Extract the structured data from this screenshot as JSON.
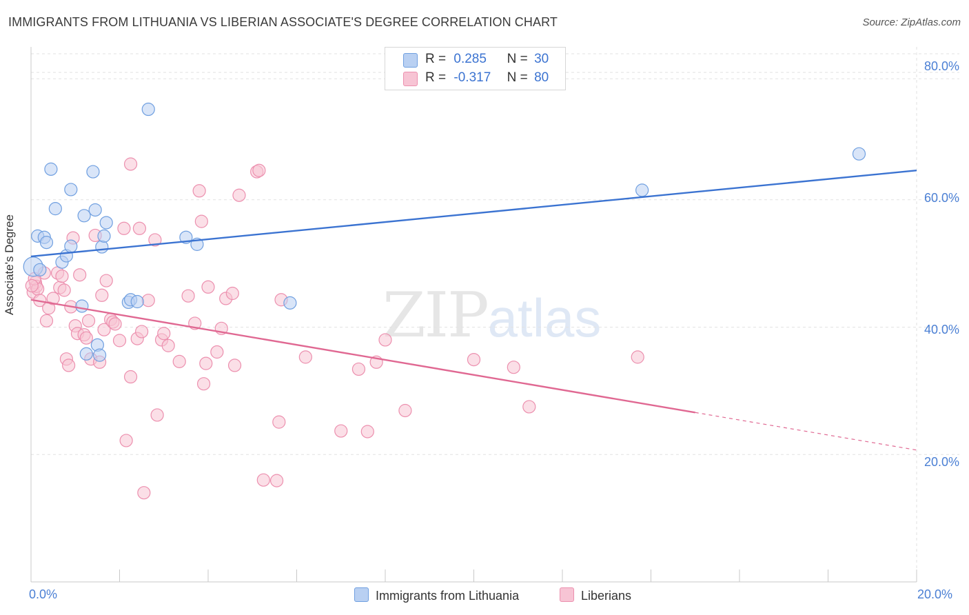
{
  "header": {
    "title": "IMMIGRANTS FROM LITHUANIA VS LIBERIAN ASSOCIATE'S DEGREE CORRELATION CHART",
    "source": "Source: ZipAtlas.com"
  },
  "watermark": {
    "zip": "ZIP",
    "atlas": "atlas"
  },
  "legend": {
    "blue": {
      "r_label": "R =",
      "r_value": "0.285",
      "n_label": "N =",
      "n_value": "30"
    },
    "pink": {
      "r_label": "R =",
      "r_value": "-0.317",
      "n_label": "N =",
      "n_value": "80"
    }
  },
  "colors": {
    "blue_fill": "#b9d0f2",
    "blue_stroke": "#6f9fe0",
    "blue_line": "#3b73d1",
    "pink_fill": "#f7c4d4",
    "pink_stroke": "#ec8fae",
    "pink_line": "#e06892",
    "tick_label": "#4a7fd4",
    "grid": "#e2e2e2"
  },
  "chart_data": {
    "type": "scatter",
    "title": "IMMIGRANTS FROM LITHUANIA VS LIBERIAN ASSOCIATE'S DEGREE CORRELATION CHART",
    "xlabel": "",
    "ylabel": "Associate's Degree",
    "xlim": [
      0,
      20
    ],
    "ylim": [
      0,
      84
    ],
    "x_ticks": [
      "0.0%",
      "20.0%"
    ],
    "y_ticks": [
      "20.0%",
      "40.0%",
      "60.0%",
      "80.0%"
    ],
    "y_tick_values": [
      20,
      40,
      60,
      80
    ],
    "grid": true,
    "legend_position": "top-center",
    "series": [
      {
        "name": "Immigrants from Lithuania",
        "color": "blue",
        "points": [
          [
            0.05,
            49.5
          ],
          [
            0.15,
            54.3
          ],
          [
            0.3,
            54.1
          ],
          [
            0.35,
            53.3
          ],
          [
            0.45,
            64.8
          ],
          [
            0.55,
            58.6
          ],
          [
            0.7,
            50.2
          ],
          [
            0.8,
            51.2
          ],
          [
            0.9,
            61.6
          ],
          [
            0.9,
            52.7
          ],
          [
            1.15,
            43.3
          ],
          [
            1.2,
            57.5
          ],
          [
            1.25,
            35.8
          ],
          [
            1.4,
            64.4
          ],
          [
            1.45,
            58.4
          ],
          [
            1.5,
            37.2
          ],
          [
            1.55,
            35.6
          ],
          [
            1.6,
            52.6
          ],
          [
            1.65,
            54.3
          ],
          [
            1.7,
            56.4
          ],
          [
            2.2,
            43.9
          ],
          [
            2.25,
            44.3
          ],
          [
            2.4,
            44.0
          ],
          [
            2.65,
            74.2
          ],
          [
            3.5,
            54.1
          ],
          [
            3.75,
            53.0
          ],
          [
            5.85,
            43.8
          ],
          [
            13.8,
            61.5
          ],
          [
            18.7,
            67.2
          ],
          [
            0.2,
            49.0
          ]
        ],
        "trend": {
          "x": [
            0,
            20
          ],
          "y": [
            51.1,
            64.6
          ],
          "dashed_from": null
        }
      },
      {
        "name": "Liberians",
        "color": "pink",
        "points": [
          [
            0.05,
            45.5
          ],
          [
            0.1,
            47.0
          ],
          [
            0.12,
            46.4
          ],
          [
            0.15,
            46.0
          ],
          [
            0.2,
            44.2
          ],
          [
            0.3,
            48.5
          ],
          [
            0.35,
            41.0
          ],
          [
            0.4,
            43.0
          ],
          [
            0.5,
            44.5
          ],
          [
            0.6,
            48.5
          ],
          [
            0.65,
            46.2
          ],
          [
            0.7,
            48.0
          ],
          [
            0.75,
            45.8
          ],
          [
            0.8,
            35.0
          ],
          [
            0.85,
            34.0
          ],
          [
            0.9,
            43.2
          ],
          [
            0.95,
            54.0
          ],
          [
            1.0,
            40.2
          ],
          [
            1.05,
            39.0
          ],
          [
            1.1,
            48.2
          ],
          [
            1.2,
            38.8
          ],
          [
            1.25,
            38.3
          ],
          [
            1.3,
            41.0
          ],
          [
            1.35,
            35.0
          ],
          [
            1.45,
            54.4
          ],
          [
            1.55,
            34.5
          ],
          [
            1.6,
            45.0
          ],
          [
            1.65,
            39.6
          ],
          [
            1.7,
            47.3
          ],
          [
            1.8,
            41.2
          ],
          [
            1.85,
            40.8
          ],
          [
            1.9,
            40.5
          ],
          [
            2.0,
            37.9
          ],
          [
            2.1,
            55.5
          ],
          [
            2.15,
            22.2
          ],
          [
            2.25,
            32.2
          ],
          [
            2.25,
            65.6
          ],
          [
            2.4,
            38.2
          ],
          [
            2.45,
            55.5
          ],
          [
            2.5,
            39.3
          ],
          [
            2.55,
            14.0
          ],
          [
            2.65,
            44.2
          ],
          [
            2.8,
            53.7
          ],
          [
            2.85,
            26.2
          ],
          [
            2.95,
            38.0
          ],
          [
            3.0,
            39.0
          ],
          [
            3.1,
            37.1
          ],
          [
            3.35,
            34.6
          ],
          [
            3.55,
            44.9
          ],
          [
            3.7,
            40.6
          ],
          [
            3.8,
            61.4
          ],
          [
            3.85,
            56.6
          ],
          [
            3.9,
            31.1
          ],
          [
            3.95,
            34.3
          ],
          [
            4.0,
            46.3
          ],
          [
            4.2,
            36.1
          ],
          [
            4.3,
            39.8
          ],
          [
            4.4,
            44.5
          ],
          [
            4.55,
            45.3
          ],
          [
            4.6,
            34.0
          ],
          [
            4.7,
            60.7
          ],
          [
            5.1,
            64.4
          ],
          [
            5.15,
            64.6
          ],
          [
            5.25,
            16.0
          ],
          [
            5.55,
            15.9
          ],
          [
            5.6,
            25.1
          ],
          [
            5.65,
            44.3
          ],
          [
            6.2,
            35.3
          ],
          [
            7.0,
            23.7
          ],
          [
            7.4,
            33.4
          ],
          [
            7.6,
            23.6
          ],
          [
            7.8,
            34.5
          ],
          [
            8.0,
            38.0
          ],
          [
            8.45,
            26.9
          ],
          [
            10.0,
            34.9
          ],
          [
            10.9,
            33.7
          ],
          [
            11.25,
            27.5
          ],
          [
            13.7,
            35.3
          ],
          [
            0.08,
            47.6
          ],
          [
            0.02,
            46.5
          ]
        ],
        "trend": {
          "x": [
            0,
            20
          ],
          "y": [
            44.3,
            20.7
          ],
          "dashed_from": 15.0
        }
      }
    ]
  },
  "bottom_legend": {
    "blue_label": "Immigrants from Lithuania",
    "pink_label": "Liberians"
  }
}
